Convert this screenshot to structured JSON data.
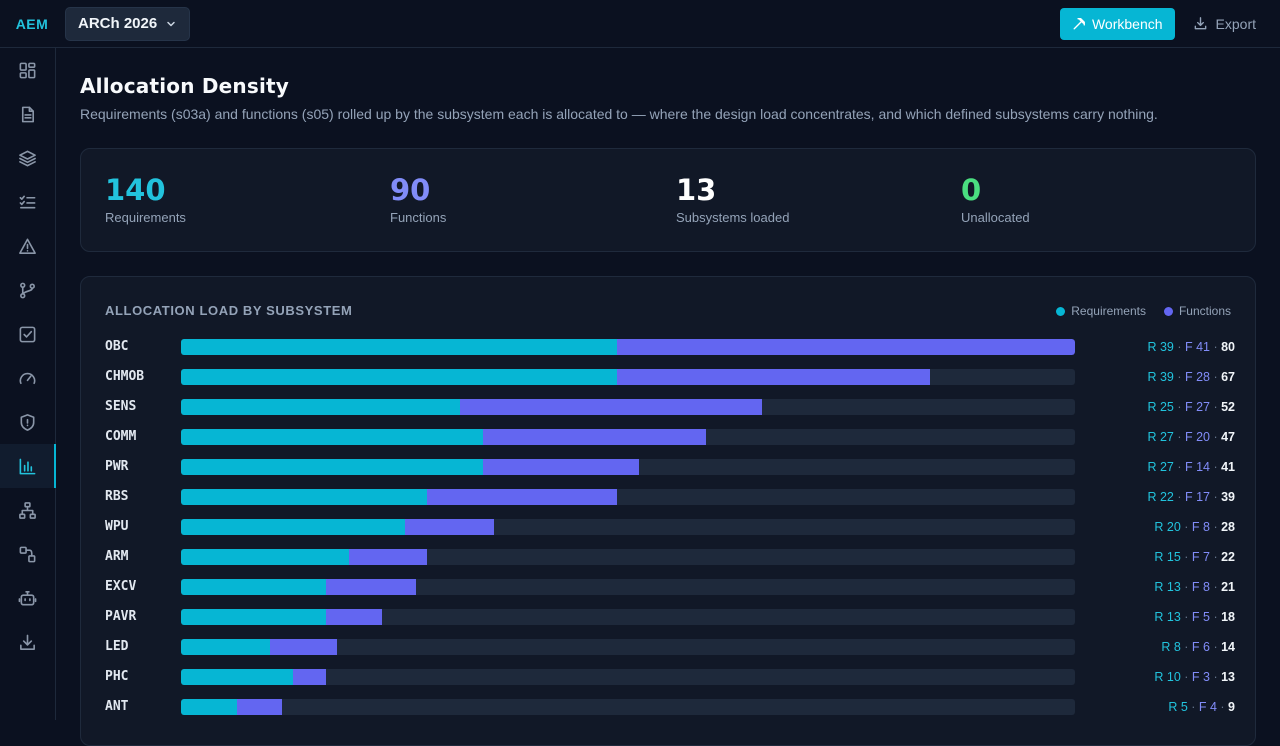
{
  "app": {
    "brand": "AEM",
    "project": "ARCh 2026",
    "workbench_label": "Workbench",
    "export_label": "Export"
  },
  "sidebar": {
    "items": [
      {
        "icon": "dashboard-icon",
        "active": false
      },
      {
        "icon": "document-icon",
        "active": false
      },
      {
        "icon": "layers-icon",
        "active": false
      },
      {
        "icon": "checklist-icon",
        "active": false
      },
      {
        "icon": "warning-icon",
        "active": false
      },
      {
        "icon": "git-branch-icon",
        "active": false
      },
      {
        "icon": "checkbox-icon",
        "active": false
      },
      {
        "icon": "gauge-icon",
        "active": false
      },
      {
        "icon": "shield-icon",
        "active": false
      },
      {
        "icon": "bar-chart-icon",
        "active": true
      },
      {
        "icon": "hierarchy-icon",
        "active": false
      },
      {
        "icon": "flow-icon",
        "active": false
      },
      {
        "icon": "robot-icon",
        "active": false
      },
      {
        "icon": "download-icon",
        "active": false
      }
    ]
  },
  "page": {
    "title": "Allocation Density",
    "subtitle": "Requirements (s03a) and functions (s05) rolled up by the subsystem each is allocated to — where the design load concentrates, and which defined subsystems carry nothing."
  },
  "stats": [
    {
      "value": "140",
      "label": "Requirements",
      "color": "#22c3dd"
    },
    {
      "value": "90",
      "label": "Functions",
      "color": "#818cf8"
    },
    {
      "value": "13",
      "label": "Subsystems loaded",
      "color": "#ffffff"
    },
    {
      "value": "0",
      "label": "Unallocated",
      "color": "#4ade80"
    }
  ],
  "chart": {
    "title": "ALLOCATION LOAD BY SUBSYSTEM",
    "legend": {
      "requirements": "Requirements",
      "functions": "Functions"
    },
    "colors": {
      "requirements": "#06b6d4",
      "functions": "#6366f1"
    }
  },
  "chart_data": {
    "type": "bar",
    "stacked": true,
    "orientation": "horizontal",
    "title": "ALLOCATION LOAD BY SUBSYSTEM",
    "xlim": [
      0,
      80
    ],
    "legend_position": "top-right",
    "categories": [
      "OBC",
      "CHMOB",
      "SENS",
      "COMM",
      "PWR",
      "RBS",
      "WPU",
      "ARM",
      "EXCV",
      "PAVR",
      "LED",
      "PHC",
      "ANT"
    ],
    "series": [
      {
        "name": "Requirements",
        "values": [
          39,
          39,
          25,
          27,
          27,
          22,
          20,
          15,
          13,
          13,
          8,
          10,
          5
        ]
      },
      {
        "name": "Functions",
        "values": [
          41,
          28,
          27,
          20,
          14,
          17,
          8,
          7,
          8,
          5,
          6,
          3,
          4
        ]
      }
    ],
    "totals": [
      80,
      67,
      52,
      47,
      41,
      39,
      28,
      22,
      21,
      18,
      14,
      13,
      9
    ],
    "prefix_r": "R",
    "prefix_f": "F",
    "separator": "·"
  }
}
